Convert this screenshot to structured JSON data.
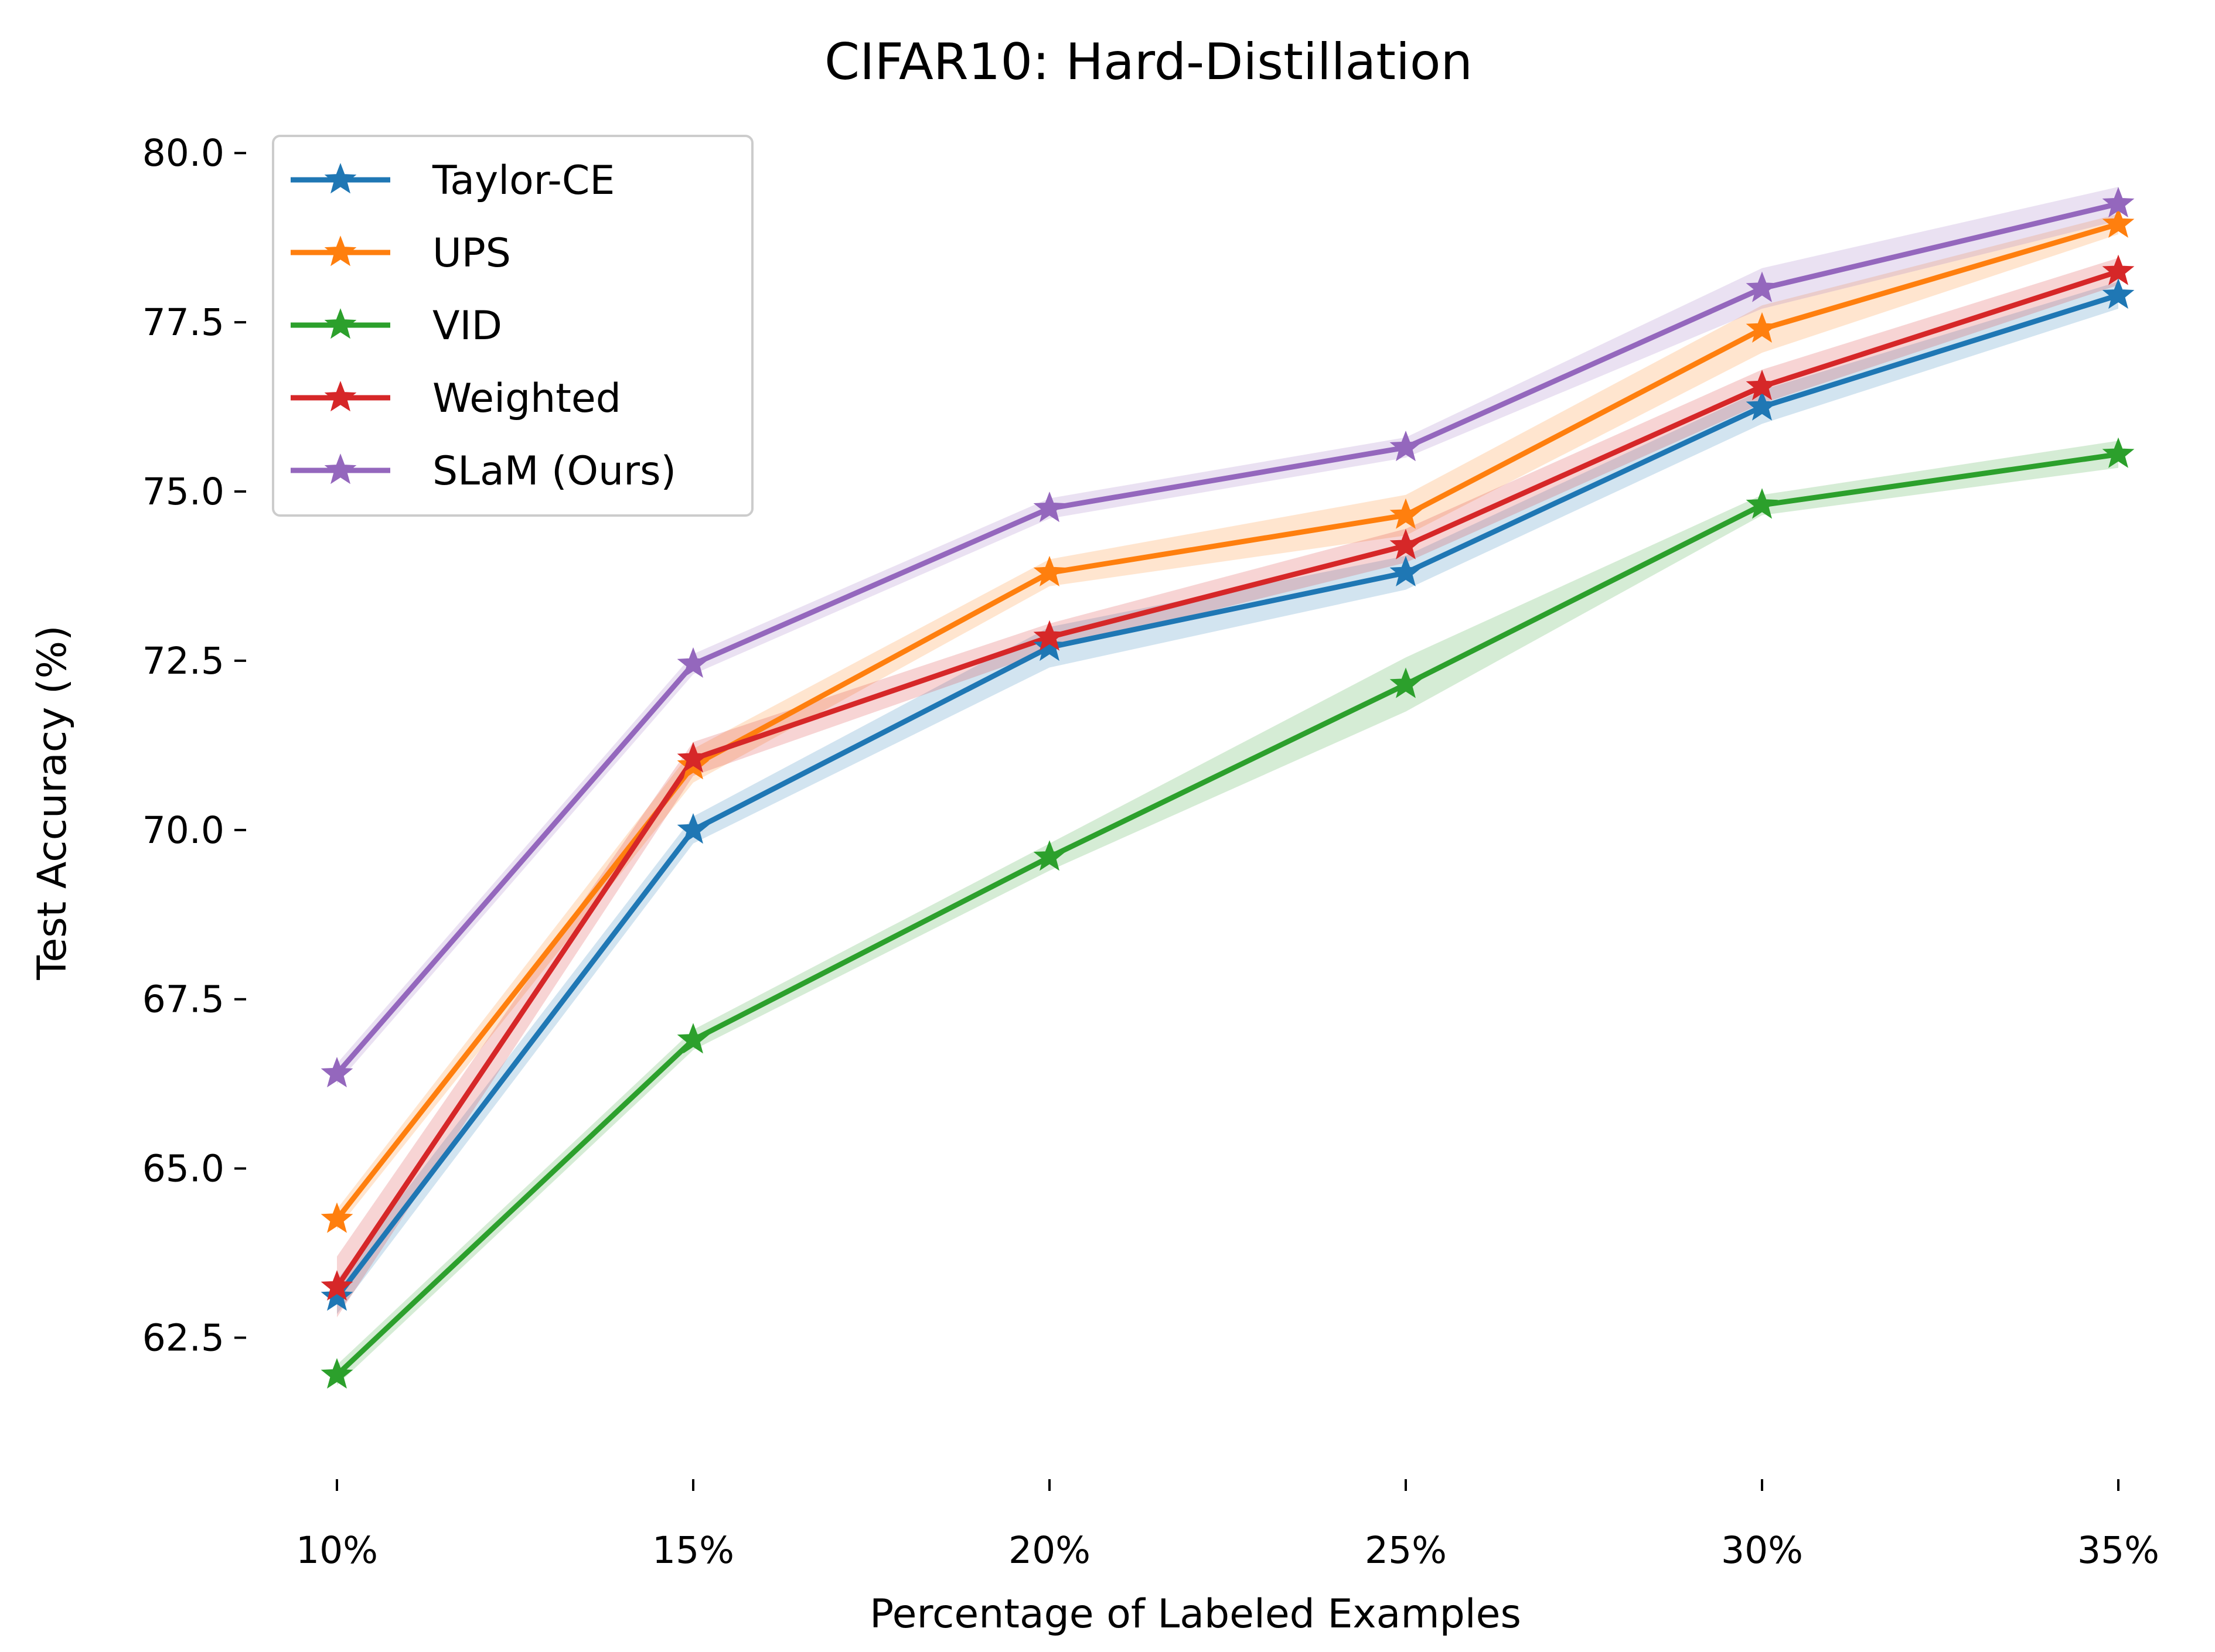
{
  "chart_data": {
    "type": "line",
    "title": "CIFAR10: Hard-Distillation",
    "xlabel": "Percentage of Labeled Examples",
    "ylabel": "Test Accuracy (%)",
    "categories": [
      "10%",
      "15%",
      "20%",
      "25%",
      "30%",
      "35%"
    ],
    "ylim": [
      60.8,
      80.4
    ],
    "yticks": [
      "62.5",
      "65.0",
      "67.5",
      "70.0",
      "72.5",
      "75.0",
      "77.5",
      "80.0"
    ],
    "ytick_values": [
      62.5,
      65.0,
      67.5,
      70.0,
      72.5,
      75.0,
      77.5,
      80.0
    ],
    "grid": false,
    "legend_position": "upper-left",
    "series": [
      {
        "name": "Taylor-CE",
        "color": "#1f77b4",
        "values": [
          63.1,
          70.0,
          72.7,
          73.8,
          76.25,
          77.9
        ],
        "band": [
          0.25,
          0.2,
          0.3,
          0.25,
          0.25,
          0.2
        ]
      },
      {
        "name": "UPS",
        "color": "#ff7f0e",
        "values": [
          64.25,
          70.95,
          73.8,
          74.65,
          77.4,
          78.95
        ],
        "band": [
          0.15,
          0.25,
          0.2,
          0.3,
          0.35,
          0.15
        ]
      },
      {
        "name": "VID",
        "color": "#2ca02c",
        "values": [
          61.95,
          66.9,
          69.6,
          72.15,
          74.8,
          75.55
        ],
        "band": [
          0.15,
          0.15,
          0.2,
          0.4,
          0.15,
          0.2
        ]
      },
      {
        "name": "Weighted",
        "color": "#d62728",
        "values": [
          63.25,
          71.05,
          72.85,
          74.2,
          76.55,
          78.25
        ],
        "band": [
          0.45,
          0.25,
          0.2,
          0.25,
          0.25,
          0.2
        ]
      },
      {
        "name": "SLaM (Ours)",
        "color": "#9467bd",
        "values": [
          66.4,
          72.45,
          74.75,
          75.65,
          78.0,
          79.25
        ],
        "band": [
          0.15,
          0.15,
          0.15,
          0.15,
          0.3,
          0.25
        ]
      }
    ]
  }
}
